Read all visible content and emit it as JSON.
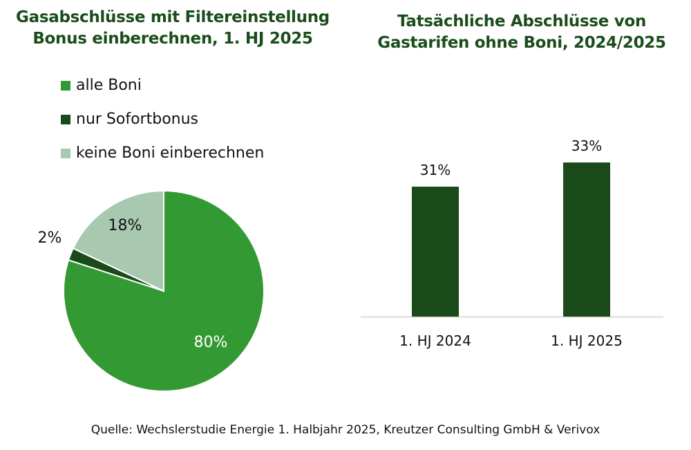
{
  "chart_data": [
    {
      "type": "pie",
      "title": "Gasabschlüsse mit Filtereinstellung Bonus einberechnen, 1. HJ 2025",
      "title_lines": [
        "Gasabschlüsse mit Filtereinstellung",
        "Bonus einberechnen, 1. HJ 2025"
      ],
      "legend_placement": "top-left",
      "slices": [
        {
          "name": "alle Boni",
          "value": 80,
          "label": "80%",
          "color": "#339933"
        },
        {
          "name": "nur Sofortbonus",
          "value": 2,
          "label": "2%",
          "color": "#1a4a1a"
        },
        {
          "name": "keine Boni einberechnen",
          "value": 18,
          "label": "18%",
          "color": "#a8c8b0"
        }
      ]
    },
    {
      "type": "bar",
      "title": "Tatsächliche Abschlüsse von Gastarifen ohne Boni, 2024/2025",
      "title_lines": [
        "Tatsächliche Abschlüsse von",
        "Gastarifen ohne Boni, 2024/2025"
      ],
      "categories": [
        "1. HJ 2024",
        "1. HJ 2025"
      ],
      "values": [
        31,
        33
      ],
      "labels": [
        "31%",
        "33%"
      ],
      "color": "#1a4a1a",
      "grid": false
    }
  ],
  "source": "Quelle: Wechslerstudie Energie 1. Halbjahr 2025, Kreutzer Consulting GmbH & Verivox"
}
